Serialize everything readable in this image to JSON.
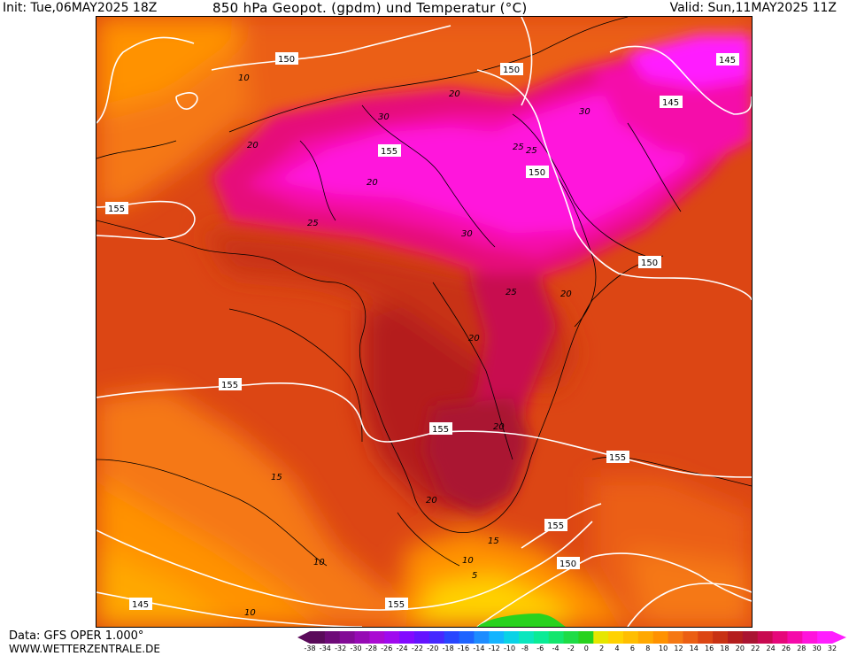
{
  "header": {
    "init": "Init: Tue,06MAY2025 18Z",
    "title": "850 hPa Geopot. (gpdm) und Temperatur (°C)",
    "valid": "Valid: Sun,11MAY2025 11Z"
  },
  "footer": {
    "source": "Data: GFS OPER 1.000°",
    "site": "WWW.WETTERZENTRALE.DE"
  },
  "colorbar": {
    "ticks": [
      "-38",
      "-34",
      "-32",
      "-30",
      "-28",
      "-26",
      "-24",
      "-22",
      "-20",
      "-18",
      "-16",
      "-14",
      "-12",
      "-10",
      "-8",
      "-6",
      "-4",
      "-2",
      "0",
      "2",
      "4",
      "6",
      "8",
      "10",
      "12",
      "14",
      "16",
      "18",
      "20",
      "22",
      "24",
      "26",
      "28",
      "30",
      "32"
    ],
    "colors": [
      "#5a0a5a",
      "#6e0a78",
      "#820a96",
      "#960ab4",
      "#aa0ad2",
      "#a00aee",
      "#820aff",
      "#6414ff",
      "#4628ff",
      "#2846ff",
      "#1e64ff",
      "#1e8cff",
      "#14b4ff",
      "#0ad2e6",
      "#0ae6be",
      "#0aeb96",
      "#14e66e",
      "#1edc46",
      "#28d21e",
      "#e6e600",
      "#ffd200",
      "#ffbe00",
      "#ffa800",
      "#ff9200",
      "#f57814",
      "#eb5f14",
      "#dc4614",
      "#c83214",
      "#b41e1e",
      "#aa1432",
      "#c80a50",
      "#e6087a",
      "#f50aaa",
      "#ff14dc",
      "#ff1eff"
    ]
  },
  "map_labels": {
    "geopotential": [
      "150",
      "150",
      "145",
      "145",
      "155",
      "150",
      "155",
      "150",
      "155",
      "155",
      "155",
      "155",
      "150",
      "145",
      "155"
    ],
    "temperature": [
      "10",
      "20",
      "20",
      "25",
      "20",
      "30",
      "25",
      "30",
      "25",
      "30",
      "20",
      "25",
      "20",
      "20",
      "15",
      "20",
      "15",
      "10",
      "5",
      "10",
      "10"
    ]
  }
}
